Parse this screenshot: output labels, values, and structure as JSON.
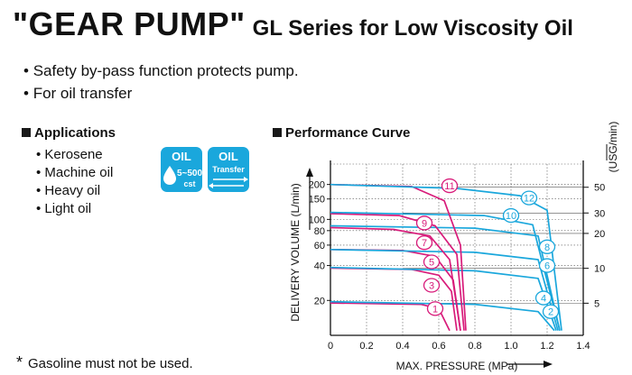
{
  "header": {
    "title_main": "\"GEAR PUMP\"",
    "title_sub": "GL Series for Low Viscosity Oil"
  },
  "features": [
    "Safety by-pass function protects pump.",
    "For oil transfer"
  ],
  "applications": {
    "heading": "Applications",
    "items": [
      "Kerosene",
      "Machine oil",
      "Heavy oil",
      "Light oil"
    ]
  },
  "badges": {
    "viscosity": {
      "top": "OIL",
      "range": "5~500",
      "unit": "cst"
    },
    "transfer": {
      "top": "OIL",
      "bottom": "Transfer"
    }
  },
  "performance": {
    "heading": "Performance Curve"
  },
  "footnote": {
    "star": "*",
    "text": "Gasoline must not be used."
  },
  "colors": {
    "blue": "#1aa7dc",
    "magenta": "#d81b7a"
  },
  "chart_data": {
    "type": "line",
    "xlabel": "MAX. PRESSURE (MPa)",
    "ylabel": "DELIVERY VOLUME (L/min)",
    "y2label": "(USG/min)",
    "xlim": [
      0,
      1.4
    ],
    "ylim": [
      10,
      300
    ],
    "y_scale": "log",
    "x_ticks": [
      "0",
      "0.2",
      "0.4",
      "0.6",
      "0.8",
      "1.0",
      "1.2",
      "1.4"
    ],
    "y_ticks": [
      20,
      40,
      60,
      80,
      100,
      150,
      200
    ],
    "y2_ticks": [
      5,
      10,
      20,
      30,
      50
    ],
    "grid": true,
    "series": [
      {
        "name": "1",
        "color": "magenta",
        "points": [
          [
            0,
            19
          ],
          [
            0.5,
            18.5
          ],
          [
            0.6,
            17
          ],
          [
            0.66,
            11
          ]
        ]
      },
      {
        "name": "2",
        "color": "blue",
        "points": [
          [
            0,
            19.5
          ],
          [
            0.8,
            18.5
          ],
          [
            1.15,
            16
          ],
          [
            1.24,
            11
          ]
        ]
      },
      {
        "name": "3",
        "color": "magenta",
        "points": [
          [
            0,
            38
          ],
          [
            0.45,
            37
          ],
          [
            0.6,
            33
          ],
          [
            0.67,
            24
          ],
          [
            0.7,
            11
          ]
        ]
      },
      {
        "name": "4",
        "color": "blue",
        "points": [
          [
            0,
            38.5
          ],
          [
            0.8,
            36
          ],
          [
            1.15,
            31
          ],
          [
            1.25,
            11
          ]
        ]
      },
      {
        "name": "5",
        "color": "magenta",
        "points": [
          [
            0,
            55
          ],
          [
            0.4,
            54
          ],
          [
            0.58,
            48
          ],
          [
            0.68,
            30
          ],
          [
            0.72,
            11
          ]
        ]
      },
      {
        "name": "6",
        "color": "blue",
        "points": [
          [
            0,
            55
          ],
          [
            0.8,
            52
          ],
          [
            1.15,
            45
          ],
          [
            1.26,
            11
          ]
        ]
      },
      {
        "name": "7",
        "color": "magenta",
        "points": [
          [
            0,
            85
          ],
          [
            0.35,
            82
          ],
          [
            0.55,
            72
          ],
          [
            0.66,
            45
          ],
          [
            0.72,
            11
          ]
        ]
      },
      {
        "name": "8",
        "color": "blue",
        "points": [
          [
            0,
            88
          ],
          [
            0.8,
            84
          ],
          [
            1.15,
            72
          ],
          [
            1.27,
            11
          ]
        ]
      },
      {
        "name": "9",
        "color": "magenta",
        "points": [
          [
            0,
            112
          ],
          [
            0.38,
            108
          ],
          [
            0.58,
            88
          ],
          [
            0.7,
            50
          ],
          [
            0.74,
            11
          ]
        ]
      },
      {
        "name": "10",
        "color": "blue",
        "points": [
          [
            0,
            115
          ],
          [
            0.85,
            108
          ],
          [
            1.12,
            90
          ],
          [
            1.27,
            11
          ]
        ]
      },
      {
        "name": "11",
        "color": "magenta",
        "points": [
          [
            0,
            200
          ],
          [
            0.45,
            192
          ],
          [
            0.63,
            145
          ],
          [
            0.72,
            60
          ],
          [
            0.75,
            11
          ]
        ]
      },
      {
        "name": "12",
        "color": "blue",
        "points": [
          [
            0,
            200
          ],
          [
            0.7,
            185
          ],
          [
            1.05,
            160
          ],
          [
            1.2,
            120
          ],
          [
            1.28,
            11
          ]
        ]
      }
    ],
    "curve_labels": [
      {
        "name": "1",
        "x": 0.58,
        "y": 17
      },
      {
        "name": "2",
        "x": 1.22,
        "y": 16
      },
      {
        "name": "3",
        "x": 0.56,
        "y": 27
      },
      {
        "name": "4",
        "x": 1.18,
        "y": 21
      },
      {
        "name": "5",
        "x": 0.56,
        "y": 43
      },
      {
        "name": "6",
        "x": 1.2,
        "y": 40
      },
      {
        "name": "7",
        "x": 0.52,
        "y": 63
      },
      {
        "name": "8",
        "x": 1.2,
        "y": 58
      },
      {
        "name": "9",
        "x": 0.52,
        "y": 93
      },
      {
        "name": "10",
        "x": 1.0,
        "y": 108
      },
      {
        "name": "11",
        "x": 0.66,
        "y": 195
      },
      {
        "name": "12",
        "x": 1.1,
        "y": 153
      }
    ]
  }
}
